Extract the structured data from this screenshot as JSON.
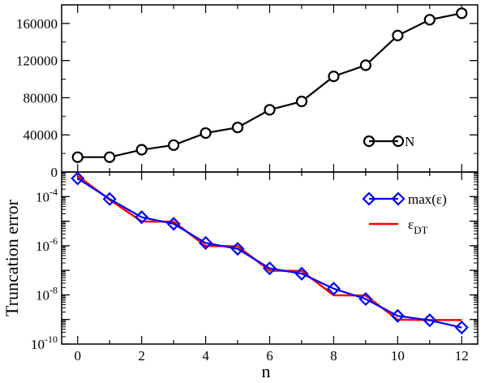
{
  "chart_data": [
    {
      "type": "line",
      "xlim": [
        -0.5,
        12.5
      ],
      "ylim": [
        0,
        180000
      ],
      "y_scale": "linear",
      "yticks": [
        0,
        40000,
        80000,
        120000,
        160000
      ],
      "ytick_labels": [
        "0",
        "40000",
        "80000",
        "120000",
        "160000"
      ],
      "ylabel": "",
      "series": [
        {
          "name": "N",
          "color": "#000000",
          "marker": "circle",
          "x": [
            0,
            1,
            2,
            3,
            4,
            5,
            6,
            7,
            8,
            9,
            10,
            11,
            12
          ],
          "y": [
            16000,
            16000,
            24000,
            29000,
            42000,
            48000,
            67000,
            76000,
            103000,
            115000,
            147000,
            164000,
            171000
          ]
        }
      ],
      "legend": "bottom-right"
    },
    {
      "type": "line",
      "xlim": [
        -0.5,
        12.5
      ],
      "ylim": [
        1e-10,
        0.001
      ],
      "y_scale": "log",
      "xticks": [
        0,
        2,
        4,
        6,
        8,
        10,
        12
      ],
      "xtick_labels": [
        "0",
        "2",
        "4",
        "6",
        "8",
        "10",
        "12"
      ],
      "ytick_base": "10",
      "ytick_exponents": [
        "-4",
        "-6",
        "-8",
        "-10"
      ],
      "xlabel": "n",
      "ylabel": "Truncation error",
      "series": [
        {
          "name_main": "max(ε)",
          "color": "#0000ff",
          "marker": "diamond",
          "x": [
            0,
            1,
            2,
            3,
            4,
            5,
            6,
            7,
            8,
            9,
            10,
            11,
            12
          ],
          "y": [
            0.00055,
            8e-05,
            1.45e-05,
            7.8e-06,
            1.3e-06,
            7.5e-07,
            1.2e-07,
            7.3e-08,
            1.8e-08,
            6.8e-09,
            1.4e-09,
            9.3e-10,
            4.7e-10
          ]
        },
        {
          "name_main": "ε",
          "name_sub": "DT",
          "color": "#ff0000",
          "marker": "none",
          "x": [
            0,
            1,
            2,
            3,
            4,
            5,
            6,
            7,
            8,
            9,
            10,
            11,
            12
          ],
          "y": [
            0.0007,
            7.5e-05,
            9.8e-06,
            9.5e-06,
            9.8e-07,
            9.5e-07,
            9.7e-08,
            9.4e-08,
            9.7e-09,
            9.5e-09,
            9.8e-10,
            9.5e-10,
            9.5e-10
          ]
        }
      ],
      "legend": "top-right"
    }
  ]
}
